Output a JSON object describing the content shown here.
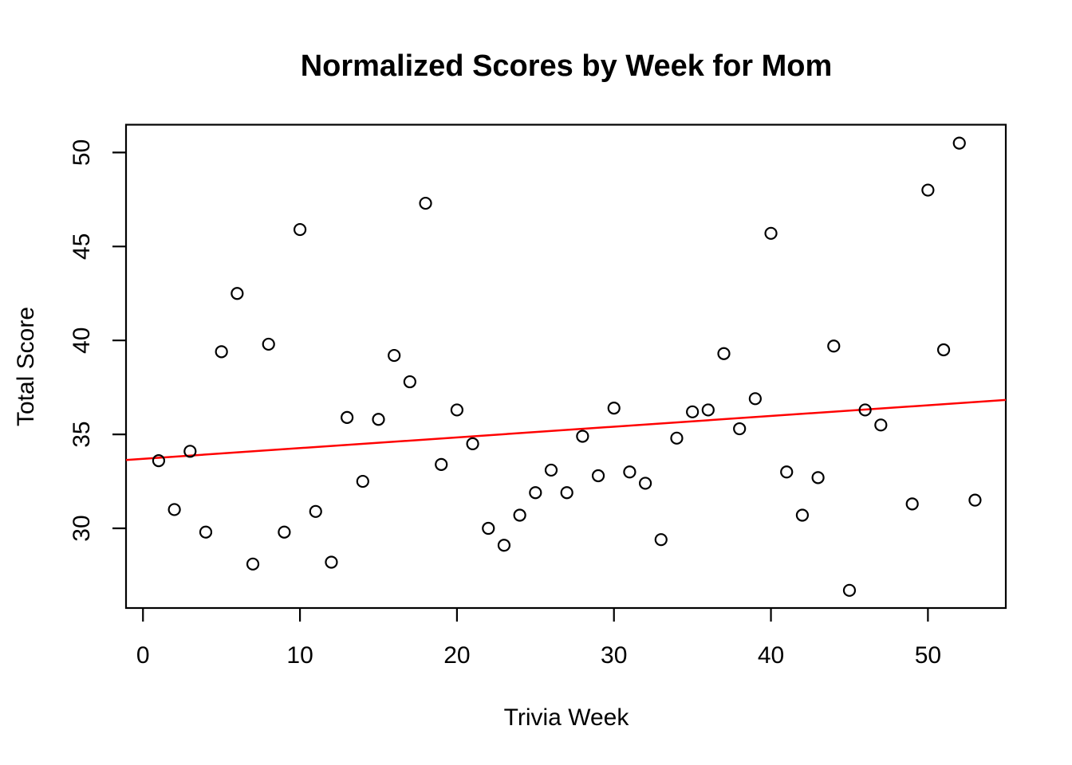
{
  "chart_data": {
    "type": "scatter",
    "title": "Normalized Scores by Week for Mom",
    "xlabel": "Trivia Week",
    "ylabel": "Total Score",
    "xlim": [
      -1.08,
      54.96
    ],
    "ylim": [
      25.76,
      51.48
    ],
    "x_ticks": [
      0,
      10,
      20,
      30,
      40,
      50
    ],
    "y_ticks": [
      30,
      35,
      40,
      45,
      50
    ],
    "grid": false,
    "legend": "none",
    "marker": {
      "shape": "open-circle",
      "stroke_color": "#000000"
    },
    "frame_color": "#000000",
    "background_color": "#ffffff",
    "points": [
      [
        1,
        33.6
      ],
      [
        2,
        31.0
      ],
      [
        3,
        34.1
      ],
      [
        4,
        29.8
      ],
      [
        5,
        39.4
      ],
      [
        6,
        42.5
      ],
      [
        7,
        28.1
      ],
      [
        8,
        39.8
      ],
      [
        9,
        29.8
      ],
      [
        10,
        45.9
      ],
      [
        11,
        30.9
      ],
      [
        12,
        28.2
      ],
      [
        13,
        35.9
      ],
      [
        14,
        32.5
      ],
      [
        15,
        35.8
      ],
      [
        16,
        39.2
      ],
      [
        17,
        37.8
      ],
      [
        18,
        47.3
      ],
      [
        19,
        33.4
      ],
      [
        20,
        36.3
      ],
      [
        21,
        34.5
      ],
      [
        22,
        30.0
      ],
      [
        23,
        29.1
      ],
      [
        24,
        30.7
      ],
      [
        25,
        31.9
      ],
      [
        26,
        33.1
      ],
      [
        27,
        31.9
      ],
      [
        28,
        34.9
      ],
      [
        29,
        32.8
      ],
      [
        30,
        36.4
      ],
      [
        31,
        33.0
      ],
      [
        32,
        32.4
      ],
      [
        33,
        29.4
      ],
      [
        34,
        34.8
      ],
      [
        35,
        36.2
      ],
      [
        36,
        36.3
      ],
      [
        37,
        39.3
      ],
      [
        38,
        35.3
      ],
      [
        39,
        36.9
      ],
      [
        40,
        45.7
      ],
      [
        41,
        33.0
      ],
      [
        42,
        30.7
      ],
      [
        43,
        32.7
      ],
      [
        44,
        39.7
      ],
      [
        45,
        26.7
      ],
      [
        46,
        36.3
      ],
      [
        47,
        35.5
      ],
      [
        49,
        31.3
      ],
      [
        50,
        48.0
      ],
      [
        51,
        39.5
      ],
      [
        52,
        50.5
      ],
      [
        53,
        31.5
      ]
    ],
    "trend_line": {
      "type": "linear",
      "intercept": 33.7,
      "slope": 0.057,
      "color": "#FF0000"
    }
  }
}
